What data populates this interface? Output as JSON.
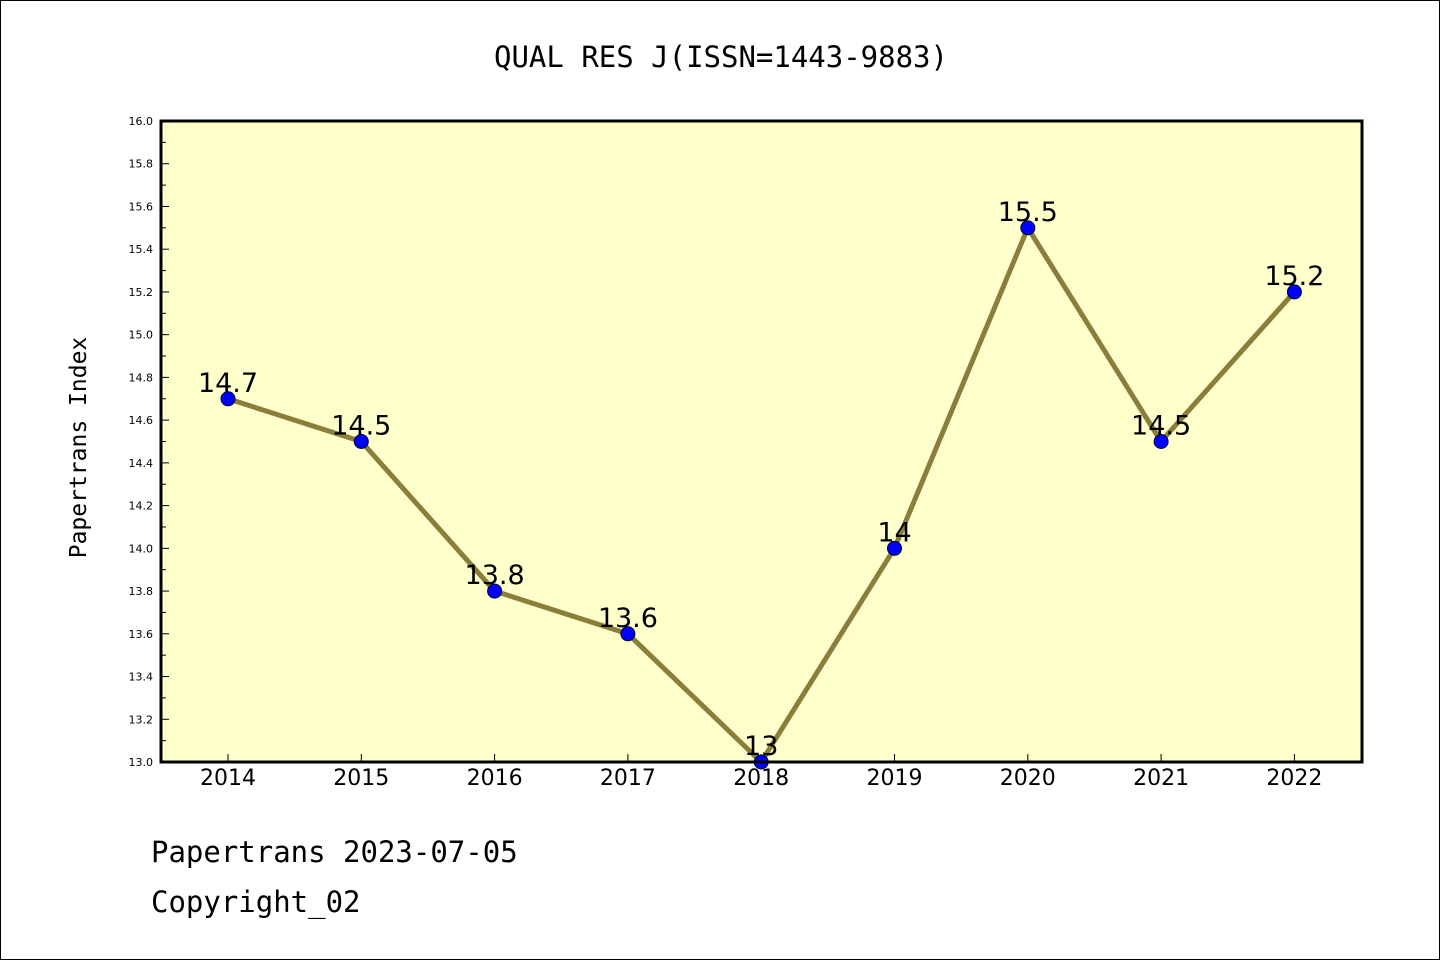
{
  "chart_data": {
    "type": "line",
    "title": "QUAL RES J(ISSN=1443-9883)",
    "ylabel": "Papertrans Index",
    "xlabel": "",
    "categories": [
      "2014",
      "2015",
      "2016",
      "2017",
      "2018",
      "2019",
      "2020",
      "2021",
      "2022"
    ],
    "series": [
      {
        "values": [
          14.7,
          14.5,
          13.8,
          13.6,
          13.0,
          14.0,
          15.5,
          14.5,
          15.2
        ],
        "data_labels": [
          "14.7",
          "14.5",
          "13.8",
          "13.6",
          "13",
          "14",
          "15.5",
          "14.5",
          "15.2"
        ]
      }
    ],
    "ylim": [
      13.0,
      16.0
    ],
    "yticks": [
      "13.0",
      "13.2",
      "13.4",
      "13.6",
      "13.8",
      "14.0",
      "14.2",
      "14.4",
      "14.6",
      "14.8",
      "15.0",
      "15.2",
      "15.4",
      "15.6",
      "15.8",
      "16.0"
    ],
    "grid": false,
    "colors": {
      "plot_background": "#ffffcc",
      "line": "#8b7d3a",
      "marker": "#0000ff"
    }
  },
  "footer": {
    "line1": "Papertrans 2023-07-05",
    "line2": "Copyright_02"
  }
}
